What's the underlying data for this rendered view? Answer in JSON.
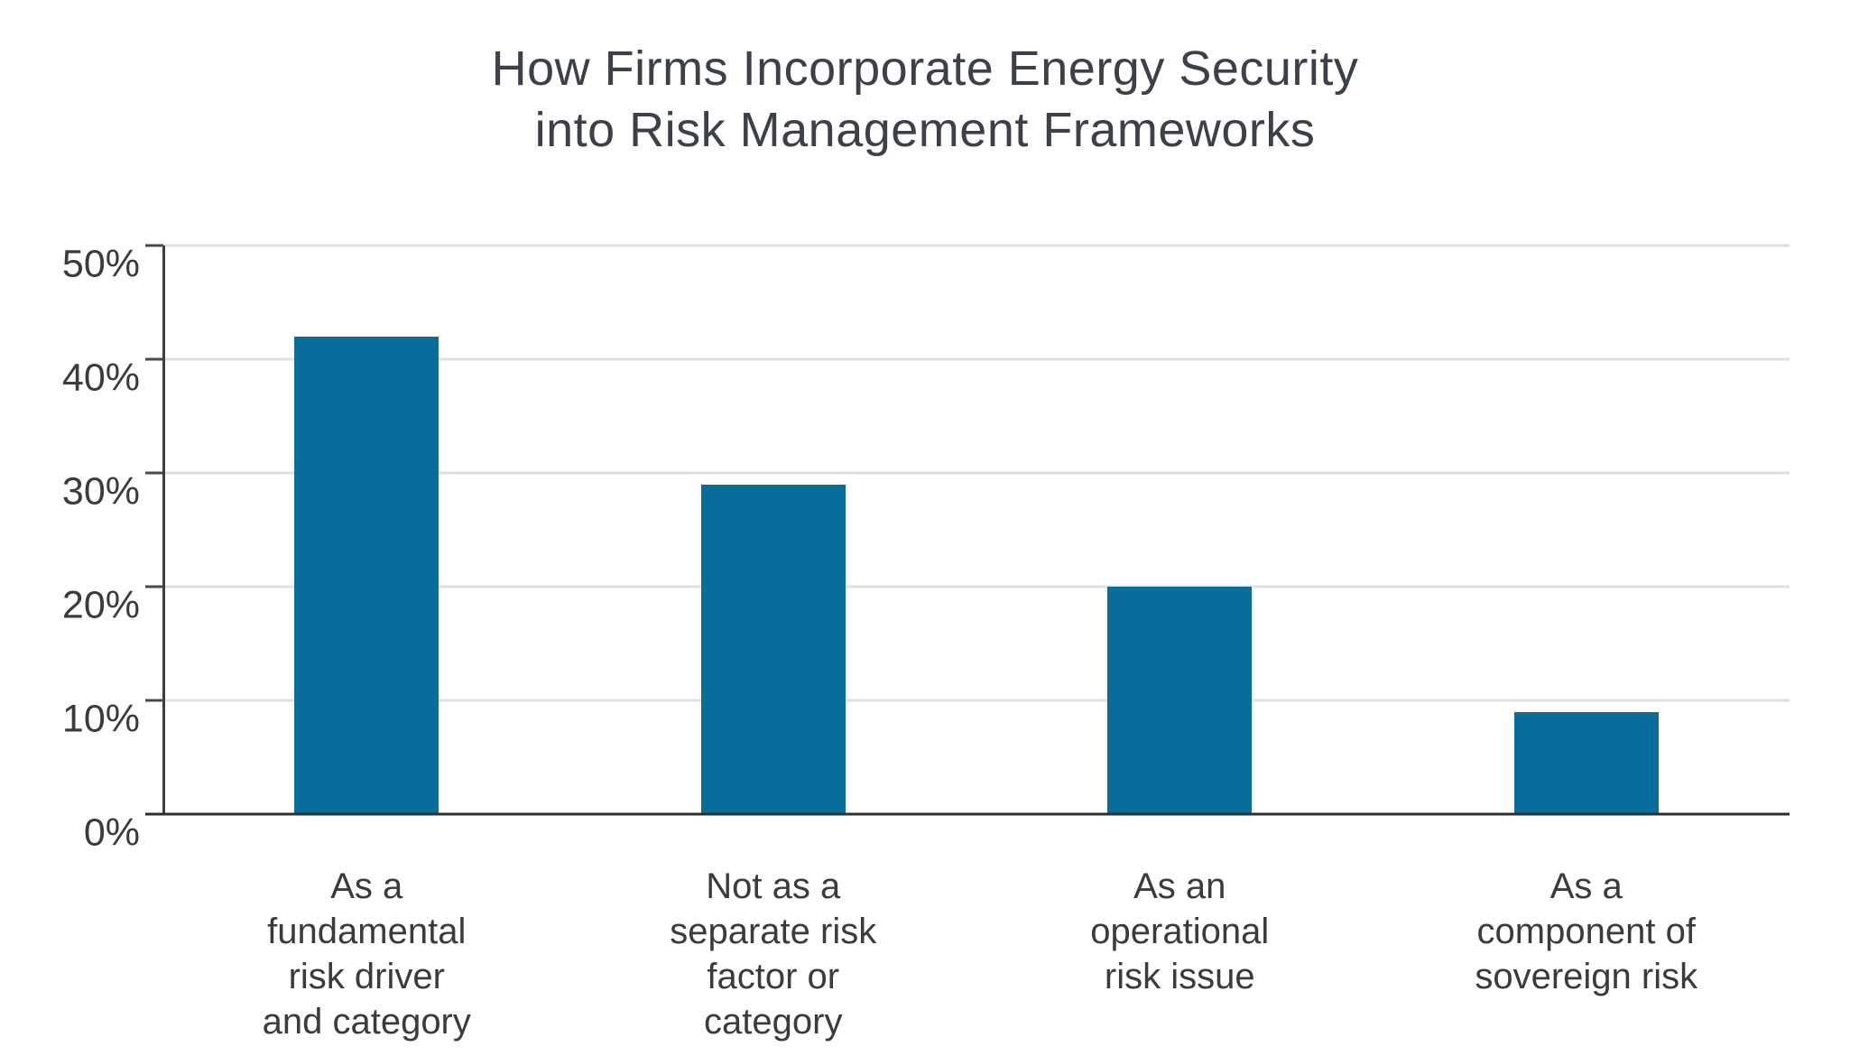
{
  "chart_data": {
    "type": "bar",
    "title": "How Firms Incorporate Energy Security into Risk Management Frameworks",
    "title_lines": [
      "How Firms Incorporate Energy Security",
      "into Risk Management Frameworks"
    ],
    "categories": [
      "As a fundamental risk driver and category",
      "Not as a separate risk factor or category",
      "As an operational risk issue",
      "As a component of sovereign risk"
    ],
    "category_lines": [
      [
        "As a",
        "fundamental",
        "risk driver",
        "and category"
      ],
      [
        "Not as a",
        "separate risk",
        "factor or",
        "category"
      ],
      [
        "As an",
        "operational",
        "risk issue"
      ],
      [
        "As a",
        "component of",
        "sovereign risk"
      ]
    ],
    "values": [
      42,
      29,
      20,
      9
    ],
    "unit": "%",
    "xlabel": "",
    "ylabel": "",
    "ylim": [
      0,
      50
    ],
    "ytick_step": 10,
    "ytick_labels": [
      "0%",
      "10%",
      "20%",
      "30%",
      "40%",
      "50%"
    ],
    "grid": true,
    "legend": "none",
    "colors": {
      "bar": "#076e9b",
      "gridline": "#dbe1e4",
      "axis": "#3f3f41",
      "text": "#3b3b3d",
      "title": "#3c4048"
    }
  }
}
